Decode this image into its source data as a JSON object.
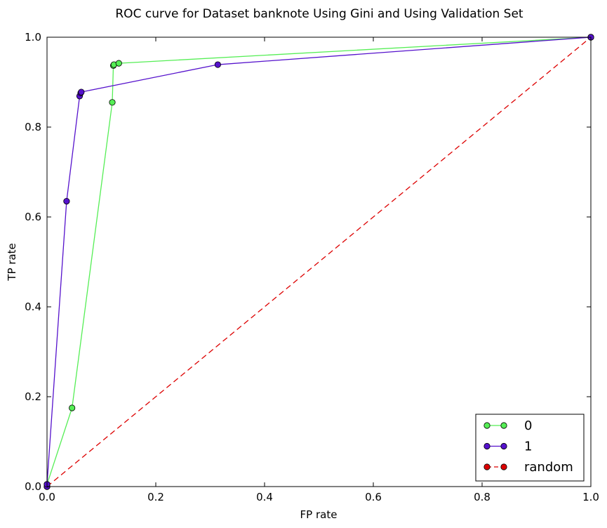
{
  "chart_data": {
    "type": "line",
    "title": "ROC curve for Dataset banknote Using Gini and Using Validation Set",
    "xlabel": "FP rate",
    "ylabel": "TP rate",
    "xlim": [
      0.0,
      1.0
    ],
    "ylim": [
      0.0,
      1.0
    ],
    "grid": false,
    "legend_position": "bottom-right",
    "x_ticks": [
      "0.0",
      "0.2",
      "0.4",
      "0.6",
      "0.8",
      "1.0"
    ],
    "y_ticks": [
      "0.0",
      "0.2",
      "0.4",
      "0.6",
      "0.8",
      "1.0"
    ],
    "series": [
      {
        "name": "0",
        "color": "#55ee55",
        "line_style": "solid",
        "points": [
          [
            0.0,
            0.0
          ],
          [
            0.0,
            0.005
          ],
          [
            0.046,
            0.175
          ],
          [
            0.12,
            0.855
          ],
          [
            0.122,
            0.937
          ],
          [
            0.123,
            0.939
          ],
          [
            0.132,
            0.942
          ],
          [
            1.0,
            1.0
          ]
        ]
      },
      {
        "name": "1",
        "color": "#5511cc",
        "line_style": "solid",
        "points": [
          [
            0.0,
            0.0
          ],
          [
            0.0,
            0.005
          ],
          [
            0.036,
            0.635
          ],
          [
            0.06,
            0.869
          ],
          [
            0.062,
            0.876
          ],
          [
            0.063,
            0.878
          ],
          [
            0.314,
            0.939
          ],
          [
            1.0,
            1.0
          ]
        ]
      },
      {
        "name": "random",
        "color": "#dd0000",
        "line_style": "dashed",
        "points": [
          [
            0.0,
            0.0
          ],
          [
            1.0,
            1.0
          ]
        ]
      }
    ]
  }
}
